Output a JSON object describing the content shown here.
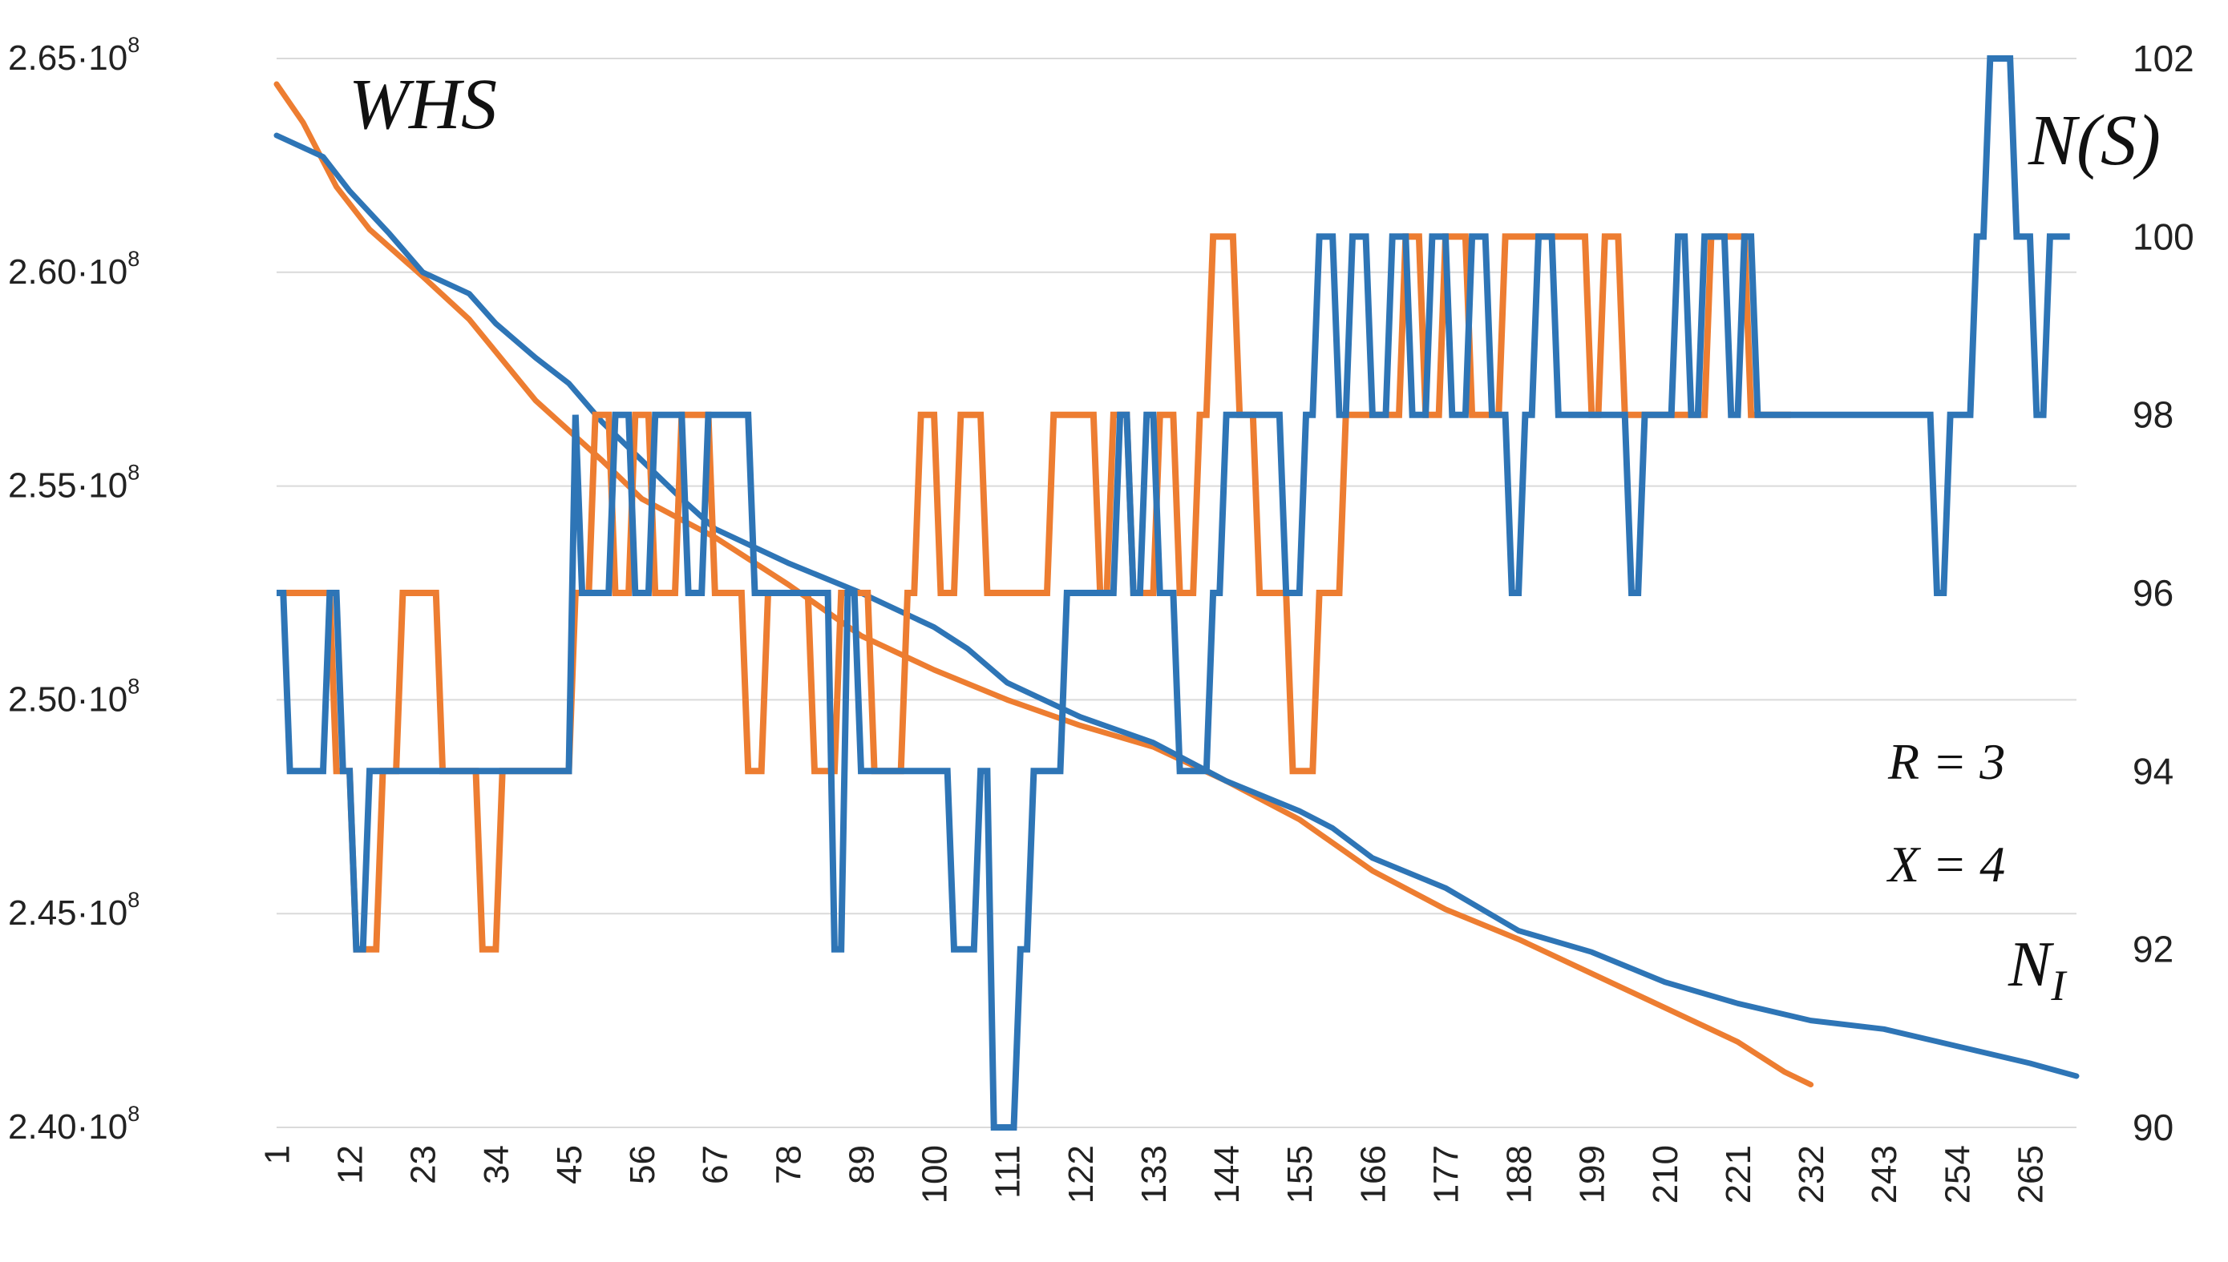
{
  "chart_data": {
    "type": "line",
    "title": "",
    "x_ticks": [
      "1",
      "12",
      "23",
      "34",
      "45",
      "56",
      "67",
      "78",
      "89",
      "100",
      "111",
      "122",
      "133",
      "144",
      "155",
      "166",
      "177",
      "188",
      "199",
      "210",
      "221",
      "232",
      "243",
      "254",
      "265"
    ],
    "x_range": [
      1,
      272
    ],
    "left_axis": {
      "label": "WHS",
      "range": [
        240000000,
        265000000
      ],
      "ticks": [
        {
          "mant": "2.40",
          "exp": "8"
        },
        {
          "mant": "2.45",
          "exp": "8"
        },
        {
          "mant": "2.50",
          "exp": "8"
        },
        {
          "mant": "2.55",
          "exp": "8"
        },
        {
          "mant": "2.60",
          "exp": "8"
        },
        {
          "mant": "2.65",
          "exp": "8"
        }
      ]
    },
    "right_axis": {
      "label": "N(S)",
      "range": [
        90,
        102
      ],
      "ticks": [
        "90",
        "92",
        "94",
        "96",
        "98",
        "100",
        "102"
      ]
    },
    "annotations": {
      "whs": "WHS",
      "ns": "N(S)",
      "r_param": "R = 3",
      "x_param": "X = 4",
      "ni_base": "N",
      "ni_sub": "I"
    },
    "colors": {
      "orange": "#ED7D31",
      "blue": "#2E75B6"
    },
    "series": [
      {
        "name": "WHS (orange)",
        "axis": "left",
        "color": "#ED7D31",
        "x": [
          1,
          5,
          10,
          15,
          23,
          30,
          40,
          50,
          56,
          67,
          78,
          89,
          100,
          111,
          122,
          133,
          144,
          155,
          166,
          177,
          188,
          199,
          210,
          221,
          228,
          232
        ],
        "values": [
          264400000,
          263500000,
          262000000,
          261000000,
          259900000,
          258900000,
          257000000,
          255600000,
          254700000,
          253800000,
          252700000,
          251500000,
          250700000,
          250000000,
          249400000,
          248900000,
          248100000,
          247200000,
          246000000,
          245100000,
          244400000,
          243600000,
          242800000,
          242000000,
          241300000,
          241000000
        ]
      },
      {
        "name": "WHS (blue)",
        "axis": "left",
        "color": "#2E75B6",
        "x": [
          1,
          8,
          12,
          18,
          23,
          30,
          34,
          40,
          45,
          50,
          56,
          62,
          67,
          78,
          89,
          100,
          105,
          111,
          122,
          133,
          144,
          155,
          160,
          166,
          177,
          188,
          199,
          210,
          221,
          232,
          243,
          254,
          265,
          272
        ],
        "values": [
          263200000,
          262700000,
          261900000,
          260900000,
          260000000,
          259500000,
          258800000,
          258000000,
          257400000,
          256500000,
          255600000,
          254700000,
          254000000,
          253200000,
          252500000,
          251700000,
          251200000,
          250400000,
          249600000,
          249000000,
          248100000,
          247400000,
          247000000,
          246300000,
          245600000,
          244600000,
          244100000,
          243400000,
          242900000,
          242500000,
          242300000,
          241900000,
          241500000,
          241200000
        ]
      },
      {
        "name": "N(S) (orange)",
        "axis": "right",
        "color": "#ED7D31",
        "x": [
          1,
          9,
          10,
          12,
          13,
          16,
          17,
          19,
          20,
          25,
          26,
          28,
          29,
          31,
          32,
          34,
          35,
          45,
          46,
          48,
          49,
          51,
          52,
          54,
          55,
          57,
          58,
          61,
          62,
          66,
          67,
          71,
          72,
          74,
          75,
          81,
          82,
          85,
          86,
          90,
          91,
          95,
          96,
          97,
          98,
          100,
          101,
          103,
          104,
          107,
          108,
          117,
          118,
          119,
          120,
          124,
          125,
          126,
          127,
          129,
          130,
          133,
          134,
          136,
          137,
          139,
          140,
          141,
          142,
          145,
          146,
          148,
          149,
          153,
          154,
          157,
          158,
          161,
          162,
          170,
          171,
          173,
          174,
          176,
          177,
          180,
          181,
          185,
          186,
          198,
          199,
          200,
          201,
          203,
          204,
          216,
          217,
          222,
          223,
          229
        ],
        "values": [
          96,
          96,
          94,
          94,
          92,
          92,
          94,
          94,
          96,
          96,
          94,
          94,
          94,
          94,
          92,
          92,
          94,
          94,
          96,
          96,
          98,
          98,
          96,
          96,
          98,
          98,
          96,
          96,
          98,
          98,
          96,
          96,
          94,
          94,
          96,
          96,
          94,
          94,
          96,
          96,
          94,
          94,
          96,
          96,
          98,
          98,
          96,
          96,
          98,
          98,
          96,
          96,
          98,
          98,
          98,
          98,
          96,
          96,
          98,
          98,
          96,
          96,
          98,
          98,
          96,
          96,
          98,
          98,
          100,
          100,
          98,
          98,
          96,
          96,
          94,
          94,
          96,
          96,
          98,
          98,
          100,
          100,
          98,
          98,
          100,
          100,
          98,
          98,
          100,
          100,
          98,
          98,
          100,
          100,
          98,
          98,
          100,
          100,
          98,
          98
        ]
      },
      {
        "name": "N(S) (blue)",
        "axis": "right",
        "color": "#2E75B6",
        "x": [
          1,
          2,
          3,
          8,
          9,
          10,
          11,
          12,
          13,
          14,
          15,
          16,
          17,
          45,
          46,
          47,
          51,
          52,
          54,
          55,
          57,
          58,
          62,
          63,
          65,
          66,
          72,
          73,
          84,
          85,
          86,
          87,
          88,
          89,
          90,
          91,
          102,
          103,
          106,
          107,
          108,
          109,
          110,
          111,
          112,
          113,
          114,
          115,
          119,
          120,
          125,
          126,
          127,
          128,
          129,
          130,
          131,
          132,
          133,
          134,
          136,
          137,
          141,
          142,
          143,
          144,
          152,
          153,
          155,
          156,
          157,
          158,
          160,
          161,
          162,
          163,
          165,
          166,
          168,
          169,
          171,
          172,
          174,
          175,
          177,
          178,
          180,
          181,
          183,
          184,
          186,
          187,
          188,
          189,
          190,
          191,
          193,
          194,
          198,
          199,
          204,
          205,
          206,
          207,
          211,
          212,
          213,
          214,
          215,
          216,
          219,
          220,
          221,
          222,
          223,
          224,
          250,
          251,
          252,
          253,
          256,
          257,
          258,
          259,
          262,
          263,
          265,
          266,
          267,
          268,
          269,
          270,
          271
        ],
        "values": [
          96,
          96,
          94,
          94,
          96,
          96,
          94,
          94,
          92,
          92,
          94,
          94,
          94,
          94,
          98,
          96,
          96,
          98,
          98,
          96,
          96,
          98,
          98,
          96,
          96,
          98,
          98,
          96,
          96,
          92,
          92,
          96,
          96,
          94,
          94,
          94,
          94,
          92,
          92,
          94,
          94,
          90,
          90,
          90,
          90,
          92,
          92,
          94,
          94,
          96,
          96,
          96,
          96,
          98,
          98,
          96,
          96,
          98,
          98,
          96,
          96,
          94,
          94,
          96,
          96,
          98,
          98,
          96,
          96,
          98,
          98,
          100,
          100,
          98,
          98,
          100,
          100,
          98,
          98,
          100,
          100,
          98,
          98,
          100,
          100,
          98,
          98,
          100,
          100,
          98,
          98,
          96,
          96,
          98,
          98,
          100,
          100,
          98,
          98,
          98,
          98,
          96,
          96,
          98,
          98,
          100,
          100,
          98,
          98,
          100,
          100,
          98,
          98,
          100,
          100,
          98,
          98,
          96,
          96,
          98,
          98,
          100,
          100,
          102,
          102,
          100,
          100,
          98,
          98,
          100,
          100,
          100,
          100
        ]
      }
    ]
  }
}
